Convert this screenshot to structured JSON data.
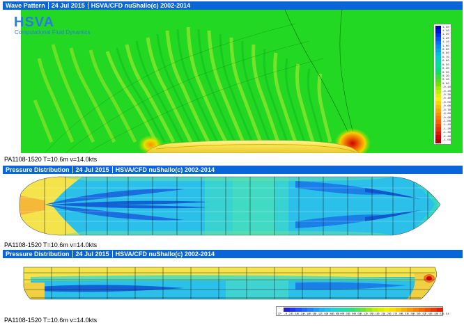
{
  "panel1": {
    "title": "Wave Pattern",
    "date": "24 Jul 2015",
    "credit": "HSVA/CFD nuShallo(c) 2002-2014",
    "brand": "HSVA",
    "brand_sub": "Computational Fluid Dynamics",
    "caption": "PA1108-1520 T=10.6m v=14.0kts"
  },
  "panel2": {
    "title": "Pressure Distribution",
    "date": "24 Jul 2015",
    "credit": "HSVA/CFD nuShallo(c) 2002-2014",
    "caption": "PA1108-1520 T=10.6m v=14.0kts"
  },
  "panel3": {
    "title": "Pressure Distribution",
    "date": "24 Jul 2015",
    "credit": "HSVA/CFD nuShallo(c) 2002-2014",
    "caption": "PA1108-1520 T=10.6m v=14.0kts"
  },
  "wave_legend": {
    "labels": [
      "1.50",
      "1.40",
      "1.30",
      "1.20",
      "1.10",
      "1.00",
      "0.90",
      "0.80",
      "0.70",
      "0.60",
      "0.50",
      "0.40",
      "0.30",
      "0.20",
      "0.10",
      "0.00",
      "-0.10",
      "-0.20",
      "-0.30",
      "-0.40",
      "-0.50",
      "-0.60",
      "-0.70",
      "-0.80",
      "-0.90",
      "-1.00",
      "-1.10",
      "-1.20",
      "-1.30",
      "-1.40",
      "-1.50"
    ],
    "colors": [
      "#0000a8",
      "#0010d8",
      "#0030f0",
      "#0050f8",
      "#0070f8",
      "#0090f0",
      "#00a8e8",
      "#00c0e0",
      "#00d0c8",
      "#00d8b0",
      "#00e098",
      "#00e080",
      "#10e060",
      "#30e040",
      "#50e020",
      "#78e000",
      "#a0e800",
      "#c0f000",
      "#e0f000",
      "#f8f000",
      "#f8d800",
      "#f8c000",
      "#f8a800",
      "#f89000",
      "#f87800",
      "#f86000",
      "#f04800",
      "#e83000",
      "#e01800",
      "#d00000",
      "#b00000"
    ]
  },
  "pressure_legend": {
    "labels": [
      "CP",
      "-0.27",
      "-0.24",
      "-0.21",
      "-0.18",
      "-0.15",
      "-0.12",
      "-0.09",
      "-0.06",
      "-0.03",
      "0.00",
      "0.03",
      "0.06",
      "0.09",
      "0.12",
      "0.15",
      "0.18",
      "0.21",
      "0.24",
      "0.27",
      "0.30",
      "0.33",
      "0.36",
      "0.39",
      "0.42",
      "0.45",
      "0.48",
      "0.51",
      "0.54"
    ],
    "colors": [
      "#2020d0",
      "#2038e0",
      "#2050f0",
      "#2068f8",
      "#2080f8",
      "#2098f8",
      "#20b0f0",
      "#20c0e8",
      "#20d0d8",
      "#20d8c0",
      "#20e0a0",
      "#30e080",
      "#50e060",
      "#70e040",
      "#98e820",
      "#b8f010",
      "#d8f000",
      "#f0f000",
      "#f8e000",
      "#f8c800",
      "#f8b000",
      "#f89800",
      "#f88000",
      "#f86800",
      "#f05000",
      "#e83800",
      "#e02000"
    ]
  },
  "colors": {
    "title_bar": "#0a66d8",
    "sea_green": "#22d822",
    "hull_yellow": "#f6e64a",
    "hull_cyan": "#27c8e8",
    "hull_blue": "#1a8ee8"
  }
}
